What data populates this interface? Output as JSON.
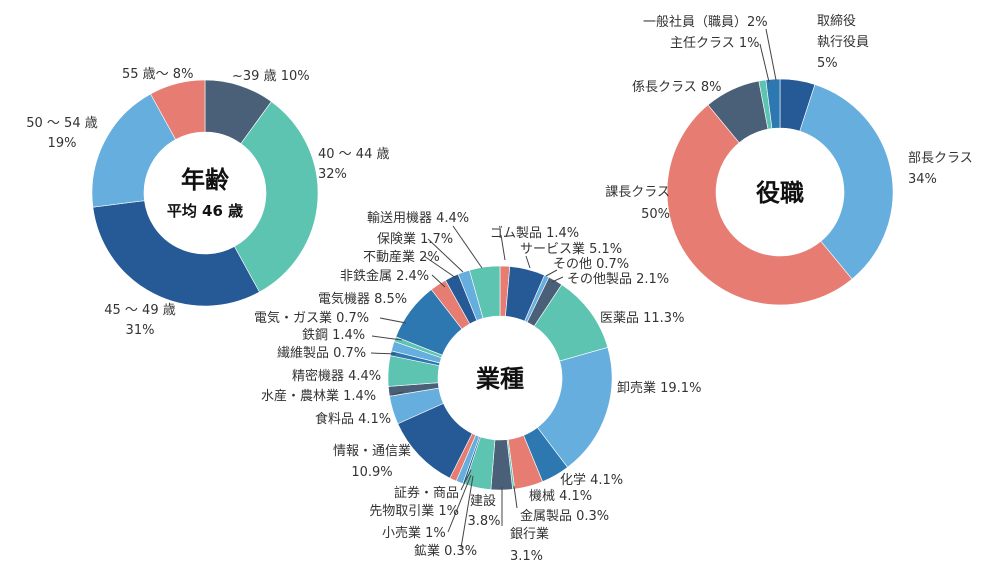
{
  "chart_data": [
    {
      "type": "pie",
      "donut": true,
      "title": "年齢",
      "subtitle": "平均 46 歳",
      "slices": [
        {
          "label": "~39 歳 10%",
          "value": 10,
          "color": "#4a5f78"
        },
        {
          "label": "40 ～ 44 歳 32%",
          "value": 32,
          "color": "#5cc4b0"
        },
        {
          "label": "45 ～ 49 歳 31%",
          "value": 31,
          "color": "#255a96"
        },
        {
          "label": "50 ～ 54 歳 19%",
          "value": 19,
          "color": "#66aede"
        },
        {
          "label": "55 歳～ 8%",
          "value": 8,
          "color": "#e67c72"
        }
      ]
    },
    {
      "type": "pie",
      "donut": true,
      "title": "業種",
      "slices": [
        {
          "label": "ゴム製品 1.4%",
          "value": 1.4,
          "color": "#e67c72"
        },
        {
          "label": "サービス業 5.1%",
          "value": 5.1,
          "color": "#255a96"
        },
        {
          "label": "その他 0.7%",
          "value": 0.7,
          "color": "#66aede"
        },
        {
          "label": "その他製品 2.1%",
          "value": 2.1,
          "color": "#4a5f78"
        },
        {
          "label": "医薬品 11.3%",
          "value": 11.3,
          "color": "#5cc4b0"
        },
        {
          "label": "卸売業 19.1%",
          "value": 19.1,
          "color": "#66aede"
        },
        {
          "label": "化学 4.1%",
          "value": 4.1,
          "color": "#2d78b0"
        },
        {
          "label": "機械 4.1%",
          "value": 4.1,
          "color": "#e67c72"
        },
        {
          "label": "金属製品 0.3%",
          "value": 0.3,
          "color": "#5cc4b0"
        },
        {
          "label": "銀行業 3.1%",
          "value": 3.1,
          "color": "#4a5f78"
        },
        {
          "label": "建設 3.8%",
          "value": 3.8,
          "color": "#5cc4b0"
        },
        {
          "label": "鉱業 0.3%",
          "value": 0.3,
          "color": "#255a96"
        },
        {
          "label": "小売業 1%",
          "value": 1,
          "color": "#66aede"
        },
        {
          "label": "証券・商品先物取引業 1%",
          "value": 1,
          "color": "#e67c72"
        },
        {
          "label": "情報・通信業 10.9%",
          "value": 10.9,
          "color": "#255a96"
        },
        {
          "label": "食料品 4.1%",
          "value": 4.1,
          "color": "#66aede"
        },
        {
          "label": "水産・農林業 1.4%",
          "value": 1.4,
          "color": "#4a5f78"
        },
        {
          "label": "精密機器 4.4%",
          "value": 4.4,
          "color": "#5cc4b0"
        },
        {
          "label": "繊維製品 0.7%",
          "value": 0.7,
          "color": "#2d78b0"
        },
        {
          "label": "鉄鋼 1.4%",
          "value": 1.4,
          "color": "#66aede"
        },
        {
          "label": "電気・ガス業 0.7%",
          "value": 0.7,
          "color": "#5cc4b0"
        },
        {
          "label": "電気機器 8.5%",
          "value": 8.5,
          "color": "#2d78b0"
        },
        {
          "label": "非鉄金属 2.4%",
          "value": 2.4,
          "color": "#e67c72"
        },
        {
          "label": "不動産業 2%",
          "value": 2,
          "color": "#255a96"
        },
        {
          "label": "保険業 1.7%",
          "value": 1.7,
          "color": "#66aede"
        },
        {
          "label": "輸送用機器 4.4%",
          "value": 4.4,
          "color": "#5cc4b0"
        }
      ]
    },
    {
      "type": "pie",
      "donut": true,
      "title": "役職",
      "slices": [
        {
          "label": "取締役執行役員 5%",
          "value": 5,
          "color": "#255a96"
        },
        {
          "label": "部長クラス 34%",
          "value": 34,
          "color": "#66aede"
        },
        {
          "label": "課長クラス 50%",
          "value": 50,
          "color": "#e67c72"
        },
        {
          "label": "係長クラス 8%",
          "value": 8,
          "color": "#4a5f78"
        },
        {
          "label": "主任クラス 1%",
          "value": 1,
          "color": "#5cc4b0"
        },
        {
          "label": "一般社員（職員）2%",
          "value": 2,
          "color": "#2d78b0"
        }
      ]
    }
  ]
}
